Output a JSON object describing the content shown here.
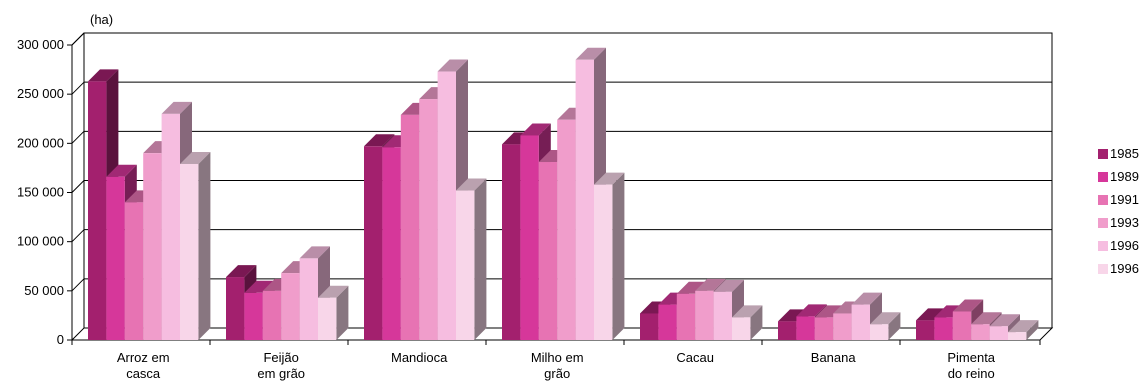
{
  "chart_data": {
    "type": "bar",
    "unit_label": "(ha)",
    "categories": [
      [
        "Arroz em",
        "casca"
      ],
      [
        "Feijão",
        "em grão"
      ],
      [
        "Mandioca"
      ],
      [
        "Milho em",
        "grão"
      ],
      [
        "Cacau"
      ],
      [
        "Banana"
      ],
      [
        "Pimenta",
        "do reino"
      ]
    ],
    "series": [
      {
        "name": "1985",
        "color": "#a3206e",
        "values": [
          263000,
          64000,
          197000,
          199000,
          27000,
          19000,
          20000
        ]
      },
      {
        "name": "1989",
        "color": "#d6379a",
        "values": [
          166000,
          48000,
          196000,
          208000,
          36000,
          24000,
          23000
        ]
      },
      {
        "name": "1991",
        "color": "#e773b3",
        "values": [
          140000,
          50000,
          229000,
          181000,
          47000,
          23000,
          29000
        ]
      },
      {
        "name": "1993",
        "color": "#f09dcb",
        "values": [
          190000,
          68000,
          245000,
          224000,
          50000,
          27000,
          16000
        ]
      },
      {
        "name": "1996",
        "color": "#f6bde0",
        "values": [
          230000,
          83000,
          273000,
          285000,
          49000,
          36000,
          14000
        ]
      },
      {
        "name": "1996",
        "color": "#f8d6e9",
        "values": [
          179000,
          43000,
          152000,
          158000,
          23000,
          16000,
          8000
        ]
      }
    ],
    "yticks": [
      "0",
      "50 000",
      "100 000",
      "150 000",
      "200 000",
      "250 000",
      "300 000"
    ],
    "ylim": [
      0,
      300000
    ],
    "grid": true,
    "legend": "right"
  }
}
